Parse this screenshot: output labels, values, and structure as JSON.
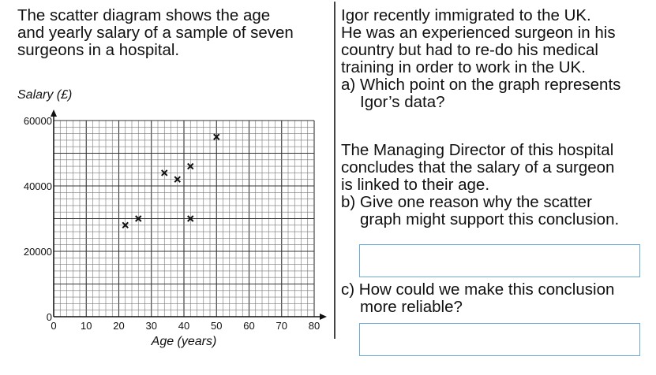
{
  "left_text": [
    "The scatter diagram shows the age",
    "and yearly salary of a sample of seven",
    "surgeons in a hospital."
  ],
  "right_text": {
    "intro": [
      "Igor recently immigrated to the UK.",
      "He was an experienced surgeon in his",
      "country but had to re-do his medical",
      "training in order to work in the UK."
    ],
    "question_a": [
      "a) Which point on the graph represents",
      "Igor’s data?"
    ],
    "director": [
      "The Managing Director of this hospital",
      "concludes that the salary of a surgeon",
      "is linked to their age."
    ],
    "question_b": [
      "b) Give one reason why the scatter",
      "graph might support this conclusion."
    ],
    "question_c": [
      "c) How could we make this conclusion",
      "more reliable?"
    ],
    "answer_b": "",
    "answer_c": ""
  },
  "chart_data": {
    "type": "scatter",
    "title": "",
    "xlabel": "Age (years)",
    "ylabel": "Salary (£)",
    "xlim": [
      0,
      80
    ],
    "ylim": [
      0,
      60000
    ],
    "xticks": [
      0,
      10,
      20,
      30,
      40,
      50,
      60,
      70,
      80
    ],
    "yticks": [
      0,
      20000,
      40000,
      60000
    ],
    "grid": true,
    "marker": "x",
    "points": [
      {
        "x": 22,
        "y": 28000
      },
      {
        "x": 26,
        "y": 30000
      },
      {
        "x": 34,
        "y": 44000
      },
      {
        "x": 38,
        "y": 42000
      },
      {
        "x": 42,
        "y": 46000
      },
      {
        "x": 42,
        "y": 30000
      },
      {
        "x": 50,
        "y": 55000
      }
    ]
  }
}
